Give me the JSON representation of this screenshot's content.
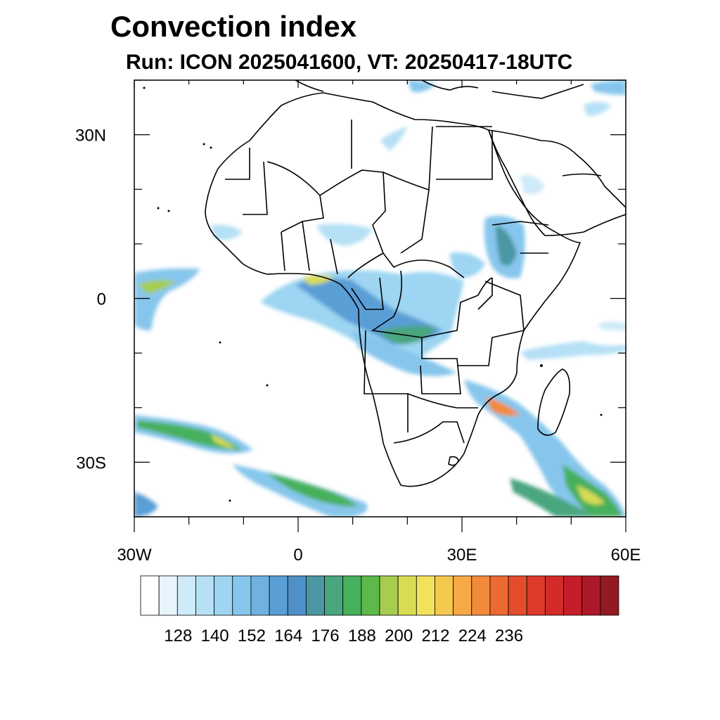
{
  "title": "Convection index",
  "subtitle": "Run: ICON 2025041600,  VT: 20250417-18UTC",
  "map": {
    "lon_range": [
      -30,
      60
    ],
    "lat_range": [
      -40,
      40
    ],
    "lat_ticks": [
      {
        "value": 30,
        "label": "30N"
      },
      {
        "value": 0,
        "label": "0"
      },
      {
        "value": -30,
        "label": "30S"
      }
    ],
    "lon_ticks": [
      {
        "value": -30,
        "label": "30W"
      },
      {
        "value": 0,
        "label": "0"
      },
      {
        "value": 30,
        "label": "30E"
      },
      {
        "value": 60,
        "label": "60E"
      }
    ],
    "land_outline_color": "#000000",
    "ocean_color": "#ffffff"
  },
  "colorbar": {
    "colors": [
      "#ffffff",
      "#e8f5fc",
      "#cfeaf8",
      "#b6e0f6",
      "#9dd5f2",
      "#86c6ec",
      "#6fb2e2",
      "#5a9ed6",
      "#4d91c8",
      "#4b97a4",
      "#4aa67f",
      "#46b05c",
      "#5cb94a",
      "#a6cd4f",
      "#d8dc52",
      "#f2e25a",
      "#f6c84e",
      "#f6a944",
      "#f28a3b",
      "#ec6a32",
      "#e34d2c",
      "#dc3a2a",
      "#d42a2a",
      "#c41e2a",
      "#ad1928",
      "#921a22"
    ],
    "labels": [
      "128",
      "140",
      "152",
      "164",
      "176",
      "188",
      "200",
      "212",
      "224",
      "236"
    ]
  }
}
